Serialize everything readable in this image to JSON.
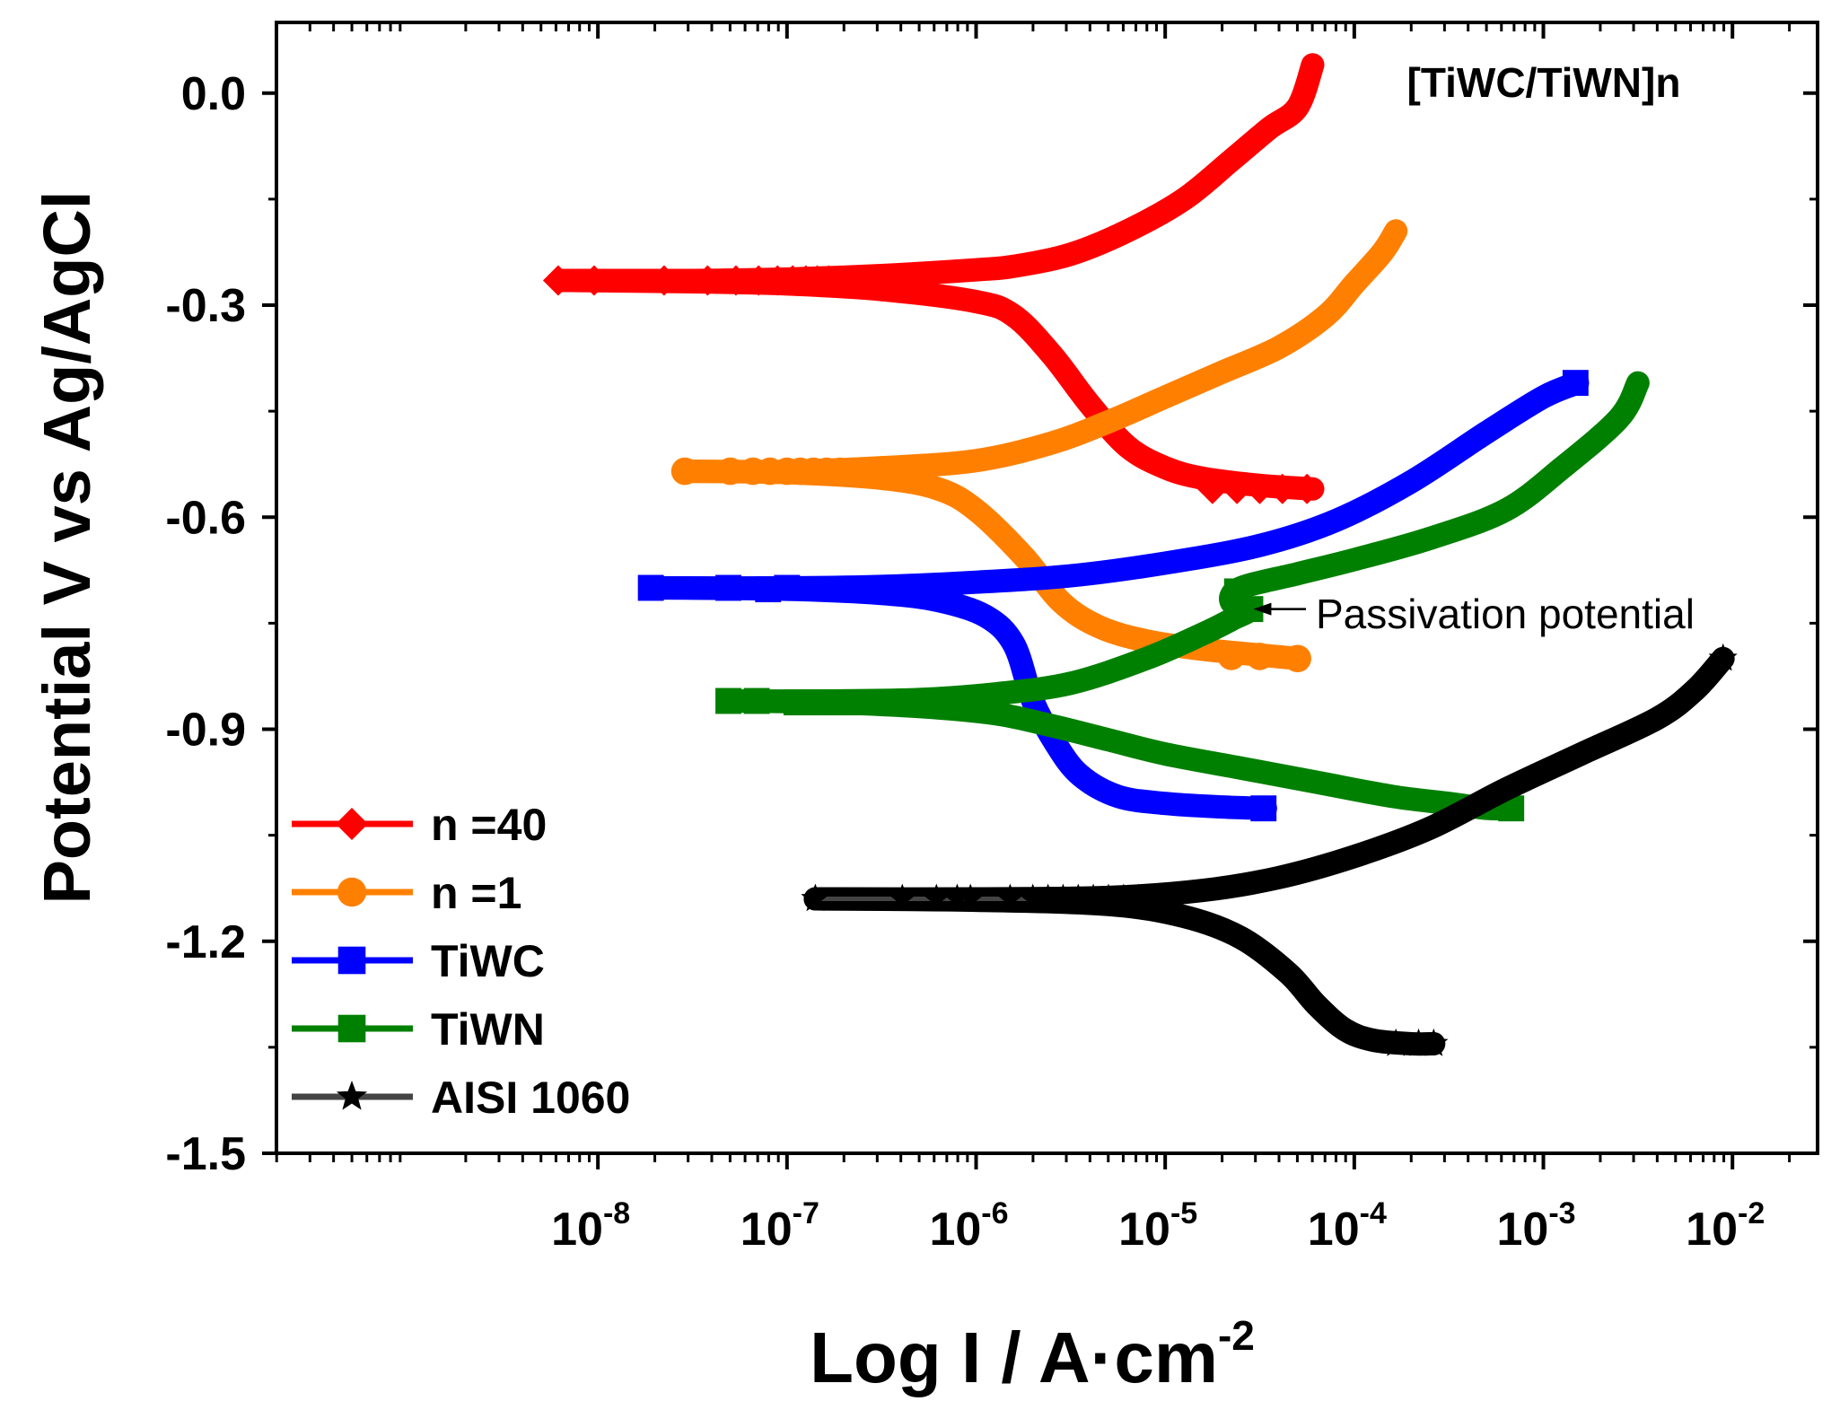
{
  "chart_data": {
    "type": "line",
    "title": "[TiWC/TiWN]n",
    "xlabel": "Log I / A·cm",
    "xlabel_sup": "-2",
    "ylabel": "Potential V vs Ag/AgCl",
    "x_scale": "log",
    "xlim_exp": [
      -9.7,
      -1.55
    ],
    "ylim": [
      -1.5,
      0.1
    ],
    "x_ticks": [
      {
        "base": "10",
        "exp": "-8",
        "value": -8
      },
      {
        "base": "10",
        "exp": "-7",
        "value": -7
      },
      {
        "base": "10",
        "exp": "-6",
        "value": -6
      },
      {
        "base": "10",
        "exp": "-5",
        "value": -5
      },
      {
        "base": "10",
        "exp": "-4",
        "value": -4
      },
      {
        "base": "10",
        "exp": "-3",
        "value": -3
      },
      {
        "base": "10",
        "exp": "-2",
        "value": -2
      }
    ],
    "y_ticks": [
      {
        "label": "0.0",
        "value": 0.0
      },
      {
        "label": "-0.3",
        "value": -0.3
      },
      {
        "label": "-0.6",
        "value": -0.6
      },
      {
        "label": "-0.9",
        "value": -0.9
      },
      {
        "label": "-1.2",
        "value": -1.2
      },
      {
        "label": "-1.5",
        "value": -1.5
      }
    ],
    "annotation": {
      "text": "Passivation potential",
      "arrow_to": {
        "logx": -4.6,
        "y": -0.73
      }
    },
    "series": [
      {
        "name": "n =40",
        "color": "#ff0000",
        "marker": "diamond",
        "anodic": [
          [
            -8.2,
            -0.265
          ],
          [
            -7.5,
            -0.265
          ],
          [
            -7,
            -0.263
          ],
          [
            -6.5,
            -0.258
          ],
          [
            -6,
            -0.25
          ],
          [
            -5.8,
            -0.245
          ],
          [
            -5.5,
            -0.228
          ],
          [
            -5.2,
            -0.195
          ],
          [
            -4.9,
            -0.15
          ],
          [
            -4.65,
            -0.095
          ],
          [
            -4.45,
            -0.05
          ],
          [
            -4.3,
            -0.02
          ],
          [
            -4.22,
            0.04
          ]
        ],
        "cathodic": [
          [
            -8.2,
            -0.265
          ],
          [
            -7.5,
            -0.267
          ],
          [
            -7,
            -0.27
          ],
          [
            -6.5,
            -0.278
          ],
          [
            -6.0,
            -0.295
          ],
          [
            -5.8,
            -0.315
          ],
          [
            -5.6,
            -0.37
          ],
          [
            -5.4,
            -0.44
          ],
          [
            -5.2,
            -0.5
          ],
          [
            -5.0,
            -0.53
          ],
          [
            -4.8,
            -0.545
          ],
          [
            -4.5,
            -0.555
          ],
          [
            -4.22,
            -0.56
          ]
        ],
        "markers": [
          [
            -8.21,
            -0.265
          ],
          [
            -8.02,
            -0.265
          ],
          [
            -7.65,
            -0.265
          ],
          [
            -7.42,
            -0.265
          ],
          [
            -7.27,
            -0.265
          ],
          [
            -7.15,
            -0.265
          ],
          [
            -7.05,
            -0.265
          ],
          [
            -6.97,
            -0.265
          ],
          [
            -6.9,
            -0.265
          ],
          [
            -6.84,
            -0.265
          ],
          [
            -6.78,
            -0.265
          ],
          [
            -6.72,
            -0.265
          ],
          [
            -6.66,
            -0.265
          ],
          [
            -6.6,
            -0.265
          ],
          [
            -4.75,
            -0.56
          ],
          [
            -4.62,
            -0.56
          ],
          [
            -4.5,
            -0.56
          ],
          [
            -4.38,
            -0.56
          ],
          [
            -4.25,
            -0.56
          ]
        ]
      },
      {
        "name": "n =1",
        "color": "#ff8000",
        "marker": "circle",
        "anodic": [
          [
            -7.55,
            -0.535
          ],
          [
            -7,
            -0.535
          ],
          [
            -6.5,
            -0.53
          ],
          [
            -6,
            -0.52
          ],
          [
            -5.6,
            -0.495
          ],
          [
            -5.3,
            -0.465
          ],
          [
            -5.0,
            -0.43
          ],
          [
            -4.7,
            -0.395
          ],
          [
            -4.4,
            -0.36
          ],
          [
            -4.15,
            -0.315
          ],
          [
            -4.0,
            -0.27
          ],
          [
            -3.85,
            -0.225
          ],
          [
            -3.78,
            -0.195
          ]
        ],
        "cathodic": [
          [
            -7.55,
            -0.535
          ],
          [
            -7,
            -0.537
          ],
          [
            -6.5,
            -0.545
          ],
          [
            -6.2,
            -0.56
          ],
          [
            -6.0,
            -0.59
          ],
          [
            -5.75,
            -0.655
          ],
          [
            -5.55,
            -0.72
          ],
          [
            -5.35,
            -0.755
          ],
          [
            -5.1,
            -0.775
          ],
          [
            -4.8,
            -0.787
          ],
          [
            -4.5,
            -0.795
          ],
          [
            -4.3,
            -0.8
          ]
        ],
        "markers": [
          [
            -7.54,
            -0.535
          ],
          [
            -7.3,
            -0.535
          ],
          [
            -7.18,
            -0.535
          ],
          [
            -7.09,
            -0.535
          ],
          [
            -7.0,
            -0.535
          ],
          [
            -6.93,
            -0.535
          ],
          [
            -6.86,
            -0.535
          ],
          [
            -6.79,
            -0.535
          ],
          [
            -6.72,
            -0.535
          ],
          [
            -6.65,
            -0.535
          ],
          [
            -4.65,
            -0.797
          ],
          [
            -4.5,
            -0.797
          ],
          [
            -4.3,
            -0.8
          ]
        ]
      },
      {
        "name": "TiWC",
        "color": "#0000ff",
        "marker": "square",
        "anodic": [
          [
            -7.72,
            -0.7
          ],
          [
            -7,
            -0.7
          ],
          [
            -6.5,
            -0.698
          ],
          [
            -6,
            -0.692
          ],
          [
            -5.5,
            -0.683
          ],
          [
            -5,
            -0.665
          ],
          [
            -4.5,
            -0.64
          ],
          [
            -4.1,
            -0.605
          ],
          [
            -3.7,
            -0.55
          ],
          [
            -3.3,
            -0.48
          ],
          [
            -3.0,
            -0.43
          ],
          [
            -2.82,
            -0.41
          ]
        ],
        "cathodic": [
          [
            -7.72,
            -0.7
          ],
          [
            -7,
            -0.702
          ],
          [
            -6.5,
            -0.708
          ],
          [
            -6.2,
            -0.718
          ],
          [
            -5.95,
            -0.74
          ],
          [
            -5.8,
            -0.78
          ],
          [
            -5.7,
            -0.86
          ],
          [
            -5.58,
            -0.92
          ],
          [
            -5.45,
            -0.965
          ],
          [
            -5.25,
            -0.995
          ],
          [
            -5,
            -1.005
          ],
          [
            -4.7,
            -1.01
          ],
          [
            -4.47,
            -1.012
          ]
        ],
        "markers": [
          [
            -7.72,
            -0.7
          ],
          [
            -7.31,
            -0.7
          ],
          [
            -7.1,
            -0.702
          ],
          [
            -7.0,
            -0.7
          ],
          [
            -4.48,
            -1.012
          ],
          [
            -2.83,
            -0.41
          ]
        ]
      },
      {
        "name": "TiWN",
        "color": "#008000",
        "marker": "square",
        "anodic": [
          [
            -7.3,
            -0.86
          ],
          [
            -6.8,
            -0.86
          ],
          [
            -6.3,
            -0.858
          ],
          [
            -5.9,
            -0.85
          ],
          [
            -5.5,
            -0.835
          ],
          [
            -5.1,
            -0.8
          ],
          [
            -4.8,
            -0.765
          ],
          [
            -4.65,
            -0.745
          ],
          [
            -4.55,
            -0.73
          ],
          [
            -4.65,
            -0.72
          ],
          [
            -4.6,
            -0.7
          ],
          [
            -4.3,
            -0.68
          ],
          [
            -4.0,
            -0.66
          ],
          [
            -3.6,
            -0.63
          ],
          [
            -3.2,
            -0.59
          ],
          [
            -2.9,
            -0.53
          ],
          [
            -2.6,
            -0.46
          ],
          [
            -2.5,
            -0.41
          ]
        ],
        "cathodic": [
          [
            -7.3,
            -0.86
          ],
          [
            -6.8,
            -0.862
          ],
          [
            -6.3,
            -0.868
          ],
          [
            -5.9,
            -0.878
          ],
          [
            -5.6,
            -0.895
          ],
          [
            -5.3,
            -0.915
          ],
          [
            -5.0,
            -0.935
          ],
          [
            -4.6,
            -0.955
          ],
          [
            -4.2,
            -0.975
          ],
          [
            -3.8,
            -0.995
          ],
          [
            -3.5,
            -1.005
          ],
          [
            -3.3,
            -1.012
          ],
          [
            -3.17,
            -1.012
          ]
        ],
        "markers": [
          [
            -7.31,
            -0.86
          ],
          [
            -7.16,
            -0.86
          ],
          [
            -6.95,
            -0.862
          ],
          [
            -6.85,
            -0.862
          ],
          [
            -6.74,
            -0.862
          ],
          [
            -6.64,
            -0.862
          ],
          [
            -6.5,
            -0.862
          ],
          [
            -6.38,
            -0.862
          ],
          [
            -6.26,
            -0.862
          ],
          [
            -4.62,
            -0.705
          ],
          [
            -4.55,
            -0.73
          ],
          [
            -3.17,
            -1.012
          ]
        ]
      },
      {
        "name": "AISI 1060",
        "color": "#000000",
        "marker": "star",
        "anodic": [
          [
            -6.85,
            -1.14
          ],
          [
            -6,
            -1.14
          ],
          [
            -5.3,
            -1.138
          ],
          [
            -4.8,
            -1.128
          ],
          [
            -4.4,
            -1.11
          ],
          [
            -4.0,
            -1.08
          ],
          [
            -3.6,
            -1.04
          ],
          [
            -3.2,
            -0.985
          ],
          [
            -2.8,
            -0.935
          ],
          [
            -2.4,
            -0.885
          ],
          [
            -2.2,
            -0.845
          ],
          [
            -2.05,
            -0.8
          ]
        ],
        "cathodic": [
          [
            -6.85,
            -1.14
          ],
          [
            -6,
            -1.142
          ],
          [
            -5.3,
            -1.148
          ],
          [
            -4.9,
            -1.165
          ],
          [
            -4.6,
            -1.195
          ],
          [
            -4.35,
            -1.245
          ],
          [
            -4.2,
            -1.29
          ],
          [
            -4.05,
            -1.325
          ],
          [
            -3.9,
            -1.34
          ],
          [
            -3.7,
            -1.345
          ],
          [
            -3.58,
            -1.345
          ]
        ],
        "markers": [
          [
            -6.85,
            -1.14
          ],
          [
            -6.39,
            -1.14
          ],
          [
            -6.21,
            -1.14
          ],
          [
            -6.1,
            -1.14
          ],
          [
            -6.03,
            -1.14
          ],
          [
            -5.82,
            -1.14
          ],
          [
            -5.7,
            -1.14
          ],
          [
            -5.62,
            -1.14
          ],
          [
            -5.54,
            -1.14
          ],
          [
            -5.46,
            -1.14
          ],
          [
            -5.38,
            -1.14
          ],
          [
            -5.3,
            -1.14
          ],
          [
            -5.22,
            -1.14
          ],
          [
            -5.14,
            -1.14
          ],
          [
            -3.78,
            -1.345
          ],
          [
            -3.66,
            -1.345
          ],
          [
            -3.58,
            -1.345
          ],
          [
            -2.05,
            -0.8
          ]
        ]
      }
    ]
  }
}
